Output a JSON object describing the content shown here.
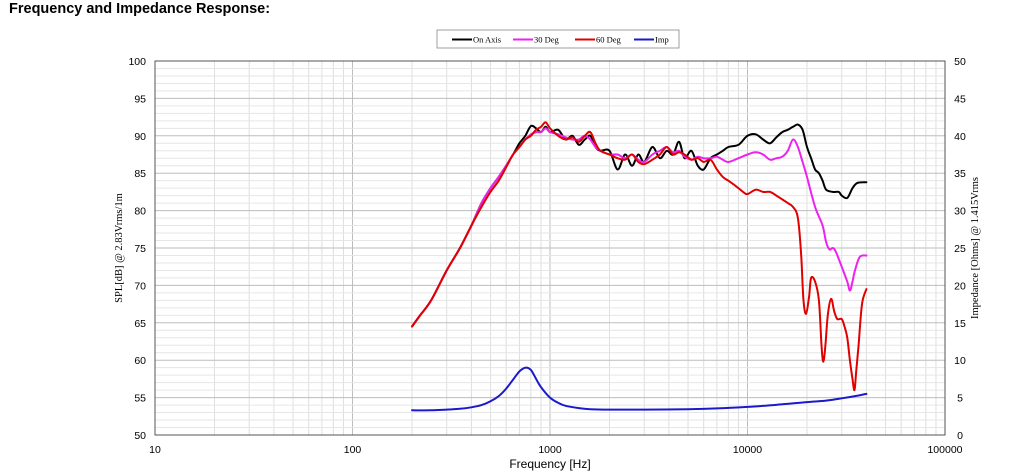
{
  "page": {
    "title": "Frequency and Impedance Response:"
  },
  "chart_data": {
    "type": "line",
    "xscale": "log",
    "xlim": [
      10,
      100000
    ],
    "xticks": [
      "10",
      "100",
      "1000",
      "10000",
      "100000"
    ],
    "xlabel": "Frequency [Hz]",
    "ylabel": "SPL[dB] @ 2.83Vrms/1m",
    "ylim": [
      50,
      100
    ],
    "yticks": [
      "50",
      "55",
      "60",
      "65",
      "70",
      "75",
      "80",
      "85",
      "90",
      "95",
      "100"
    ],
    "y2label": "Impedance [Ohms] @ 1.415Vrms",
    "y2lim": [
      0,
      50
    ],
    "y2ticks": [
      "0",
      "5",
      "10",
      "15",
      "20",
      "25",
      "30",
      "35",
      "40",
      "45",
      "50"
    ],
    "grid": true,
    "legend_position": "top-center",
    "series": [
      {
        "name": "On Axis",
        "color": "#000000",
        "axis": "left",
        "points": [
          [
            200,
            64.5
          ],
          [
            220,
            66
          ],
          [
            250,
            68
          ],
          [
            300,
            72
          ],
          [
            350,
            75
          ],
          [
            400,
            78
          ],
          [
            450,
            81
          ],
          [
            500,
            83
          ],
          [
            550,
            84.5
          ],
          [
            600,
            86
          ],
          [
            650,
            87.5
          ],
          [
            700,
            89
          ],
          [
            750,
            90
          ],
          [
            800,
            91.3
          ],
          [
            850,
            91
          ],
          [
            900,
            90.5
          ],
          [
            950,
            91.2
          ],
          [
            1000,
            90.5
          ],
          [
            1100,
            90.8
          ],
          [
            1200,
            89.5
          ],
          [
            1300,
            90
          ],
          [
            1400,
            88.8
          ],
          [
            1500,
            89.5
          ],
          [
            1600,
            90
          ],
          [
            1700,
            88.5
          ],
          [
            1800,
            88
          ],
          [
            2000,
            88
          ],
          [
            2200,
            85.5
          ],
          [
            2400,
            87.5
          ],
          [
            2600,
            86
          ],
          [
            2800,
            87.5
          ],
          [
            3000,
            86.5
          ],
          [
            3300,
            88.5
          ],
          [
            3600,
            87
          ],
          [
            3900,
            88
          ],
          [
            4200,
            87.5
          ],
          [
            4500,
            89.2
          ],
          [
            4800,
            87
          ],
          [
            5200,
            88
          ],
          [
            5600,
            86
          ],
          [
            6000,
            85.5
          ],
          [
            6500,
            87
          ],
          [
            7000,
            87.5
          ],
          [
            7500,
            88
          ],
          [
            8000,
            88.5
          ],
          [
            9000,
            88.8
          ],
          [
            10000,
            90
          ],
          [
            11000,
            90.2
          ],
          [
            12000,
            89.5
          ],
          [
            13000,
            89
          ],
          [
            14000,
            89.8
          ],
          [
            15000,
            90.5
          ],
          [
            16000,
            90.8
          ],
          [
            17000,
            91.2
          ],
          [
            18000,
            91.5
          ],
          [
            19000,
            90.8
          ],
          [
            20000,
            88.5
          ],
          [
            21000,
            87
          ],
          [
            22000,
            85.5
          ],
          [
            23000,
            85
          ],
          [
            24000,
            84
          ],
          [
            25000,
            82.8
          ],
          [
            27000,
            82.5
          ],
          [
            29000,
            82.5
          ],
          [
            30000,
            82
          ],
          [
            32000,
            81.7
          ],
          [
            34000,
            83
          ],
          [
            36000,
            83.7
          ],
          [
            40000,
            83.8
          ]
        ]
      },
      {
        "name": "30 Deg",
        "color": "#ee22ee",
        "axis": "left",
        "points": [
          [
            200,
            64.5
          ],
          [
            220,
            66
          ],
          [
            250,
            68
          ],
          [
            300,
            72
          ],
          [
            350,
            75
          ],
          [
            400,
            78
          ],
          [
            450,
            81
          ],
          [
            500,
            83
          ],
          [
            550,
            84.5
          ],
          [
            600,
            86
          ],
          [
            650,
            87.5
          ],
          [
            700,
            88.5
          ],
          [
            750,
            89.5
          ],
          [
            800,
            90.2
          ],
          [
            850,
            90.5
          ],
          [
            900,
            90.5
          ],
          [
            950,
            91
          ],
          [
            1000,
            90.5
          ],
          [
            1100,
            90.2
          ],
          [
            1200,
            89.8
          ],
          [
            1300,
            89.5
          ],
          [
            1400,
            89.5
          ],
          [
            1500,
            90
          ],
          [
            1600,
            89.5
          ],
          [
            1700,
            88.5
          ],
          [
            1800,
            88
          ],
          [
            2000,
            87.5
          ],
          [
            2200,
            87.5
          ],
          [
            2400,
            87
          ],
          [
            2600,
            87.5
          ],
          [
            2800,
            86.8
          ],
          [
            3000,
            86.5
          ],
          [
            3300,
            87.5
          ],
          [
            3600,
            88
          ],
          [
            3900,
            88.5
          ],
          [
            4200,
            87.8
          ],
          [
            4500,
            88
          ],
          [
            4800,
            87.2
          ],
          [
            5200,
            86.8
          ],
          [
            5600,
            87.2
          ],
          [
            6000,
            87
          ],
          [
            6500,
            87
          ],
          [
            7000,
            87.2
          ],
          [
            7500,
            86.8
          ],
          [
            8000,
            86.5
          ],
          [
            9000,
            87
          ],
          [
            10000,
            87.5
          ],
          [
            11000,
            87.8
          ],
          [
            12000,
            87.5
          ],
          [
            13000,
            86.8
          ],
          [
            14000,
            87
          ],
          [
            15000,
            87.2
          ],
          [
            16000,
            88
          ],
          [
            17000,
            89.5
          ],
          [
            18000,
            88.5
          ],
          [
            19000,
            86.5
          ],
          [
            20000,
            84.5
          ],
          [
            22000,
            80.5
          ],
          [
            24000,
            78
          ],
          [
            25000,
            75.8
          ],
          [
            26000,
            74.8
          ],
          [
            27000,
            75
          ],
          [
            28000,
            74.5
          ],
          [
            30000,
            72.5
          ],
          [
            32000,
            70.5
          ],
          [
            33000,
            69.3
          ],
          [
            34000,
            70.5
          ],
          [
            35000,
            72
          ],
          [
            37000,
            73.8
          ],
          [
            40000,
            74
          ]
        ]
      },
      {
        "name": "60 Deg",
        "color": "#e00000",
        "axis": "left",
        "points": [
          [
            200,
            64.5
          ],
          [
            220,
            66
          ],
          [
            250,
            68
          ],
          [
            300,
            72
          ],
          [
            350,
            75
          ],
          [
            400,
            78
          ],
          [
            450,
            80.5
          ],
          [
            500,
            82.5
          ],
          [
            550,
            84
          ],
          [
            600,
            85.8
          ],
          [
            650,
            87.5
          ],
          [
            700,
            88.5
          ],
          [
            750,
            89.5
          ],
          [
            800,
            90
          ],
          [
            850,
            90.8
          ],
          [
            900,
            91.2
          ],
          [
            950,
            91.8
          ],
          [
            1000,
            91
          ],
          [
            1100,
            90
          ],
          [
            1200,
            89.5
          ],
          [
            1300,
            89.8
          ],
          [
            1400,
            89.2
          ],
          [
            1500,
            90
          ],
          [
            1600,
            90.5
          ],
          [
            1700,
            89
          ],
          [
            1800,
            88
          ],
          [
            2000,
            87.5
          ],
          [
            2200,
            87
          ],
          [
            2400,
            86.8
          ],
          [
            2600,
            87.5
          ],
          [
            2800,
            86.5
          ],
          [
            3000,
            86.2
          ],
          [
            3300,
            86.8
          ],
          [
            3600,
            87.5
          ],
          [
            3900,
            88.5
          ],
          [
            4200,
            87.5
          ],
          [
            4500,
            87.8
          ],
          [
            4800,
            87.5
          ],
          [
            5200,
            86.8
          ],
          [
            5600,
            87
          ],
          [
            6000,
            86.5
          ],
          [
            6500,
            86.8
          ],
          [
            7000,
            85.5
          ],
          [
            7500,
            84.5
          ],
          [
            8000,
            84
          ],
          [
            8500,
            83.5
          ],
          [
            9000,
            83
          ],
          [
            9500,
            82.5
          ],
          [
            10000,
            82.2
          ],
          [
            11000,
            82.8
          ],
          [
            12000,
            82.5
          ],
          [
            13000,
            82.5
          ],
          [
            14000,
            82
          ],
          [
            15000,
            81.5
          ],
          [
            16000,
            81
          ],
          [
            17000,
            80.5
          ],
          [
            18000,
            79
          ],
          [
            18700,
            74
          ],
          [
            19200,
            68
          ],
          [
            19800,
            66.2
          ],
          [
            20500,
            68.5
          ],
          [
            21000,
            71
          ],
          [
            22000,
            70.5
          ],
          [
            23000,
            68
          ],
          [
            23700,
            62
          ],
          [
            24200,
            59.8
          ],
          [
            24800,
            62
          ],
          [
            25500,
            66
          ],
          [
            26500,
            68.2
          ],
          [
            27500,
            66.5
          ],
          [
            28500,
            65.5
          ],
          [
            30000,
            65.5
          ],
          [
            31000,
            64.5
          ],
          [
            32000,
            63
          ],
          [
            33000,
            60
          ],
          [
            34000,
            57.5
          ],
          [
            34800,
            56
          ],
          [
            35500,
            58.5
          ],
          [
            36500,
            62
          ],
          [
            38000,
            67.5
          ],
          [
            40000,
            69.5
          ]
        ]
      },
      {
        "name": "Imp",
        "color": "#1a1acc",
        "axis": "right",
        "points": [
          [
            200,
            3.3
          ],
          [
            250,
            3.3
          ],
          [
            300,
            3.4
          ],
          [
            350,
            3.5
          ],
          [
            400,
            3.7
          ],
          [
            450,
            4
          ],
          [
            500,
            4.5
          ],
          [
            550,
            5.2
          ],
          [
            600,
            6.2
          ],
          [
            650,
            7.4
          ],
          [
            700,
            8.5
          ],
          [
            750,
            9
          ],
          [
            800,
            8.7
          ],
          [
            850,
            7.5
          ],
          [
            900,
            6.4
          ],
          [
            1000,
            5
          ],
          [
            1100,
            4.3
          ],
          [
            1200,
            3.9
          ],
          [
            1400,
            3.6
          ],
          [
            1600,
            3.45
          ],
          [
            2000,
            3.4
          ],
          [
            3000,
            3.4
          ],
          [
            5000,
            3.45
          ],
          [
            7000,
            3.55
          ],
          [
            10000,
            3.75
          ],
          [
            15000,
            4.1
          ],
          [
            20000,
            4.4
          ],
          [
            25000,
            4.6
          ],
          [
            30000,
            4.9
          ],
          [
            35000,
            5.2
          ],
          [
            40000,
            5.5
          ]
        ]
      }
    ]
  }
}
